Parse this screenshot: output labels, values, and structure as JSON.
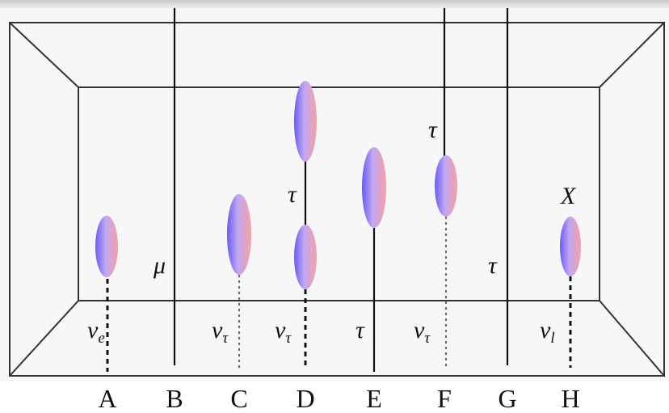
{
  "columns": [
    "A",
    "B",
    "C",
    "D",
    "E",
    "F",
    "G",
    "H"
  ],
  "labels": [
    {
      "symbol": "ν",
      "sub": "e"
    },
    {
      "symbol": "μ"
    },
    {
      "symbol": "ν",
      "sub": "τ"
    },
    {
      "symbol": "ν",
      "sub": "τ"
    },
    {
      "symbol": "τ"
    },
    {
      "symbol": "τ"
    },
    {
      "symbol": "τ"
    },
    {
      "symbol": "ν",
      "sub": "τ"
    },
    {
      "symbol": "τ"
    },
    {
      "symbol": "X"
    },
    {
      "symbol": "ν",
      "sub": "l"
    }
  ]
}
